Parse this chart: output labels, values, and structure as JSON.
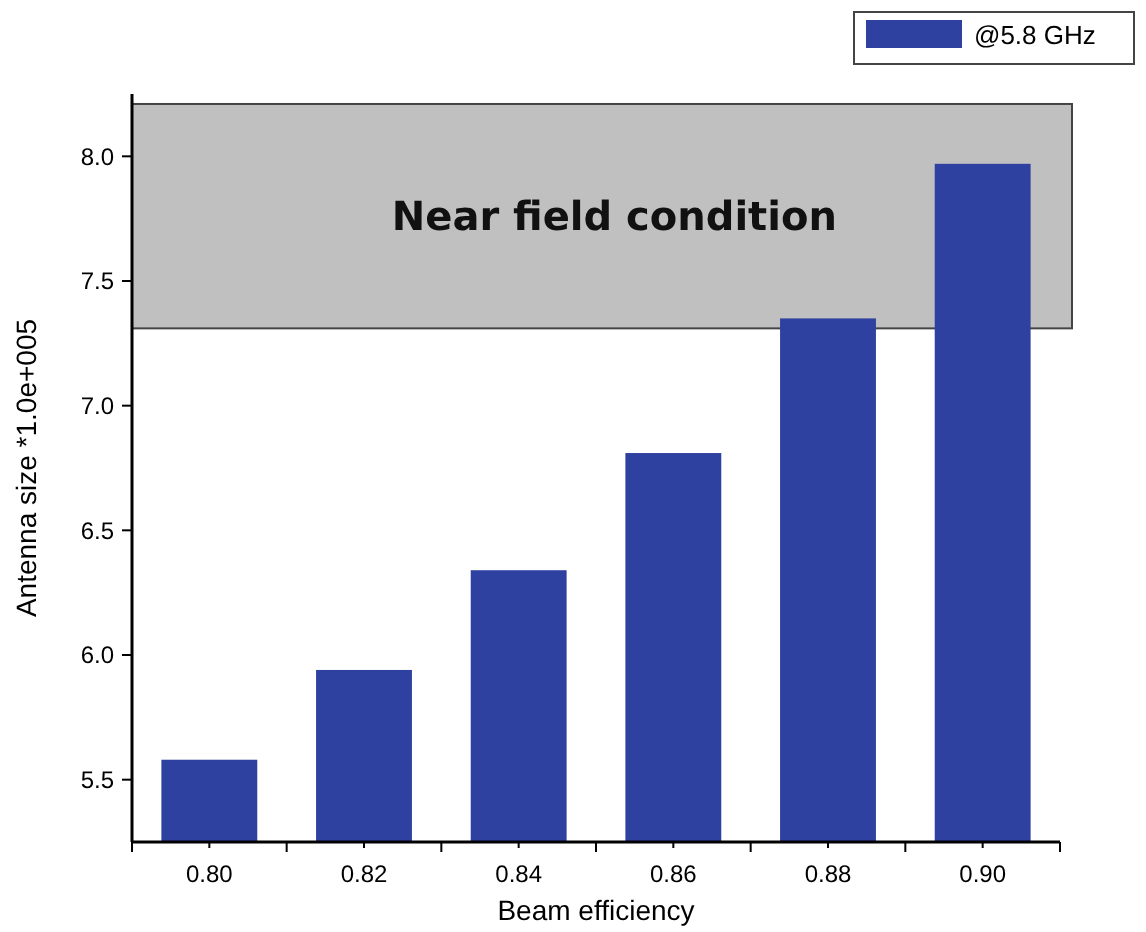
{
  "chart_data": {
    "type": "bar",
    "xlabel": "Beam efficiency",
    "ylabel": "Antenna size *1.0e+005",
    "categories": [
      "0.80",
      "0.82",
      "0.84",
      "0.86",
      "0.88",
      "0.90"
    ],
    "series": [
      {
        "name": "@5.8 GHz",
        "color": "#2e41a0",
        "values": [
          5.58,
          5.94,
          6.34,
          6.81,
          7.35,
          7.97
        ]
      }
    ],
    "ylim": [
      5.25,
      8.25
    ],
    "yticks": [
      {
        "value": 5.5,
        "label": "5.5"
      },
      {
        "value": 6,
        "label": "6.0"
      },
      {
        "value": 6.5,
        "label": "6.5"
      },
      {
        "value": 7,
        "label": "7.0"
      },
      {
        "value": 7.5,
        "label": "7.5"
      },
      {
        "value": 8,
        "label": "8.0"
      }
    ],
    "bands": [
      {
        "axis": "y",
        "from": 7.31,
        "to": 8.21,
        "label": "Near field condition",
        "color": "#c0c0c0"
      }
    ],
    "legend": "top right",
    "grid": false
  }
}
